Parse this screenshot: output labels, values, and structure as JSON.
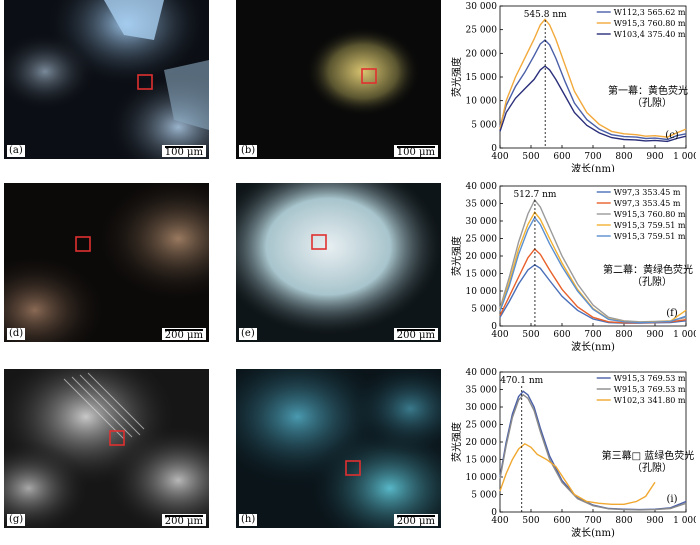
{
  "panels": [
    {
      "label": "(a)",
      "scale": "100 μm"
    },
    {
      "label": "(b)",
      "scale": "100 μm"
    },
    {
      "label": "(d)",
      "scale": "200 μm"
    },
    {
      "label": "(e)",
      "scale": "200 μm"
    },
    {
      "label": "(g)",
      "scale": "200 μm"
    },
    {
      "label": "(h)",
      "scale": "200 μm"
    }
  ],
  "colors": {
    "marker": "#e03030"
  },
  "chart_data": [
    {
      "type": "line",
      "panel_label": "(c)",
      "ylabel": "荧光强度",
      "xlabel": "波长(nm)",
      "xlim": [
        400,
        1000
      ],
      "ylim": [
        0,
        30000
      ],
      "xticks": [
        400,
        500,
        600,
        700,
        800,
        900,
        1000
      ],
      "xtick_labels": [
        "400",
        "500",
        "600",
        "700",
        "800",
        "900",
        "1 000"
      ],
      "yticks": [
        0,
        5000,
        10000,
        15000,
        20000,
        25000,
        30000
      ],
      "ytick_labels": [
        "0",
        "5 000",
        "10 000",
        "15 000",
        "20 000",
        "25 000",
        "30 000"
      ],
      "peak_x": 545.8,
      "peak_label": "545.8 nm",
      "annotation_lines": [
        "第一幕：黄色荧光",
        "（孔隙）"
      ],
      "series": [
        {
          "name": "W112,3 565.62 m",
          "color": "#4a5fa8",
          "x": [
            400,
            420,
            450,
            480,
            510,
            530,
            545,
            560,
            580,
            610,
            640,
            680,
            720,
            760,
            800,
            840,
            870,
            900,
            940,
            970,
            1000
          ],
          "y": [
            4500,
            9000,
            13000,
            16000,
            19500,
            22000,
            22800,
            21800,
            19000,
            14000,
            9500,
            6000,
            4000,
            2800,
            2400,
            2300,
            2000,
            2100,
            1800,
            2600,
            3000
          ]
        },
        {
          "name": "W915,3 760.80 m",
          "color": "#f2a93b",
          "x": [
            400,
            420,
            450,
            480,
            510,
            530,
            545,
            560,
            580,
            610,
            640,
            680,
            720,
            760,
            800,
            840,
            870,
            900,
            940,
            970,
            1000
          ],
          "y": [
            4000,
            10000,
            15000,
            19000,
            23000,
            26000,
            27200,
            26000,
            23000,
            17500,
            12000,
            7500,
            5000,
            3500,
            3000,
            2800,
            2500,
            2600,
            2300,
            3200,
            4000
          ]
        },
        {
          "name": "W103,4 375.40 m",
          "color": "#2b2f7a",
          "x": [
            400,
            420,
            450,
            480,
            510,
            530,
            545,
            560,
            580,
            610,
            640,
            680,
            720,
            760,
            800,
            840,
            870,
            900,
            940,
            970,
            1000
          ],
          "y": [
            3500,
            7500,
            10500,
            12500,
            14500,
            16500,
            17300,
            16500,
            14500,
            11000,
            7500,
            4800,
            3200,
            2200,
            1800,
            1700,
            1500,
            1600,
            1400,
            2000,
            2500
          ]
        }
      ]
    },
    {
      "type": "line",
      "panel_label": "(f)",
      "ylabel": "荧光强度",
      "xlabel": "波长(nm)",
      "xlim": [
        400,
        1000
      ],
      "ylim": [
        0,
        40000
      ],
      "xticks": [
        400,
        500,
        600,
        700,
        800,
        900,
        1000
      ],
      "xtick_labels": [
        "400",
        "500",
        "600",
        "700",
        "800",
        "900",
        "1 000"
      ],
      "yticks": [
        0,
        5000,
        10000,
        15000,
        20000,
        25000,
        30000,
        35000,
        40000
      ],
      "ytick_labels": [
        "0",
        "5 000",
        "10 000",
        "15 000",
        "20 000",
        "25 000",
        "30 000",
        "35 000",
        "40 000"
      ],
      "peak_x": 512.7,
      "peak_label": "512.7 nm",
      "annotation_lines": [
        "第二幕：黄绿色荧光",
        "（孔隙）"
      ],
      "series": [
        {
          "name": "W97,3 353.45 m",
          "color": "#4a6fb8",
          "x": [
            400,
            430,
            460,
            490,
            512,
            530,
            560,
            600,
            650,
            700,
            750,
            800,
            850,
            900,
            950,
            1000
          ],
          "y": [
            2500,
            7000,
            12000,
            16000,
            17500,
            16500,
            13000,
            8500,
            4500,
            2000,
            1000,
            800,
            800,
            900,
            1000,
            1500
          ]
        },
        {
          "name": "W97,3 353.45 m",
          "color": "#e8602a",
          "x": [
            400,
            430,
            460,
            490,
            512,
            530,
            560,
            600,
            650,
            700,
            750,
            800,
            850,
            900,
            950,
            1000
          ],
          "y": [
            3000,
            8500,
            14000,
            19500,
            22000,
            20500,
            16000,
            10500,
            5500,
            2500,
            1200,
            900,
            900,
            1000,
            1200,
            1800
          ]
        },
        {
          "name": "W915,3 760.80 m",
          "color": "#9a9a9a",
          "x": [
            400,
            430,
            460,
            490,
            512,
            530,
            560,
            600,
            650,
            700,
            750,
            800,
            850,
            900,
            950,
            1000
          ],
          "y": [
            5000,
            14000,
            24000,
            32000,
            36000,
            34000,
            28000,
            20000,
            12000,
            6000,
            2500,
            1500,
            1200,
            1300,
            1500,
            2500
          ]
        },
        {
          "name": "W915,3 759.51 m",
          "color": "#f2b233",
          "x": [
            400,
            430,
            460,
            490,
            512,
            530,
            560,
            600,
            650,
            700,
            750,
            800,
            850,
            900,
            950,
            1000
          ],
          "y": [
            4500,
            12500,
            22000,
            29000,
            32500,
            30500,
            25000,
            18000,
            10500,
            5000,
            2000,
            1300,
            1100,
            1200,
            1400,
            4500
          ]
        },
        {
          "name": "W915,3 759.51 m",
          "color": "#5b8fd0",
          "x": [
            400,
            430,
            460,
            490,
            512,
            530,
            560,
            600,
            650,
            700,
            750,
            800,
            850,
            900,
            950,
            1000
          ],
          "y": [
            4200,
            11500,
            20500,
            27500,
            31000,
            29000,
            23500,
            17000,
            10000,
            4800,
            1900,
            1200,
            1000,
            1100,
            1300,
            2800
          ]
        }
      ]
    },
    {
      "type": "line",
      "panel_label": "(i)",
      "ylabel": "荧光强度",
      "xlabel": "波长(nm)",
      "xlim": [
        400,
        1000
      ],
      "ylim": [
        0,
        40000
      ],
      "xticks": [
        400,
        500,
        600,
        700,
        800,
        900,
        1000
      ],
      "xtick_labels": [
        "400",
        "500",
        "600",
        "700",
        "800",
        "900",
        "1 000"
      ],
      "yticks": [
        0,
        5000,
        10000,
        15000,
        20000,
        25000,
        30000,
        35000,
        40000
      ],
      "ytick_labels": [
        "0",
        "5 000",
        "10 000",
        "15 000",
        "20 000",
        "25 000",
        "30 000",
        "35 000",
        "40 000"
      ],
      "peak_x": 470.1,
      "peak_label": "470.1 nm",
      "annotation_lines": [
        "第三幕□ 蓝绿色荧光",
        "（孔隙）"
      ],
      "series": [
        {
          "name": "W915,3 769.53 m",
          "color": "#4a5fa8",
          "x": [
            400,
            420,
            440,
            460,
            475,
            490,
            510,
            530,
            560,
            600,
            650,
            700,
            750,
            800,
            850,
            900,
            950,
            1000
          ],
          "y": [
            10000,
            20000,
            28000,
            33000,
            34500,
            33500,
            30000,
            24000,
            16000,
            9000,
            4000,
            2000,
            1000,
            800,
            700,
            800,
            1200,
            3000
          ]
        },
        {
          "name": "W915,3 769.53 m",
          "color": "#8a8a8a",
          "x": [
            400,
            420,
            440,
            460,
            475,
            490,
            510,
            530,
            560,
            600,
            650,
            700,
            750,
            800,
            850,
            900,
            950,
            1000
          ],
          "y": [
            9500,
            19000,
            27000,
            32000,
            33500,
            32500,
            29000,
            23000,
            15000,
            8500,
            3800,
            1800,
            900,
            700,
            600,
            700,
            1000,
            2500
          ]
        },
        {
          "name": "W102,3 341.80 m",
          "color": "#f0a830",
          "x": [
            400,
            420,
            440,
            460,
            480,
            500,
            520,
            550,
            580,
            610,
            640,
            680,
            720,
            760,
            800,
            840,
            870,
            900
          ],
          "y": [
            6000,
            11000,
            15000,
            18000,
            19500,
            18500,
            16500,
            15000,
            13000,
            9000,
            5000,
            3000,
            2500,
            2200,
            2200,
            3000,
            4500,
            8500
          ]
        }
      ]
    }
  ]
}
